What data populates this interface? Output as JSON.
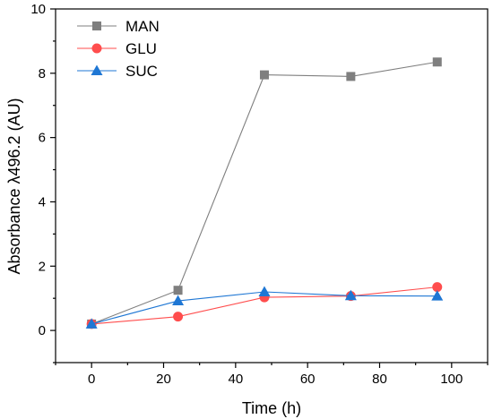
{
  "chart_data": {
    "type": "line",
    "xlabel": "Time (h)",
    "ylabel": "Absorbance λ496.2 (AU)",
    "xlim": [
      -10,
      110
    ],
    "ylim": [
      -1,
      10
    ],
    "xticks": [
      "0",
      "20",
      "40",
      "60",
      "80",
      "100"
    ],
    "yticks": [
      "0",
      "2",
      "4",
      "6",
      "8",
      "10"
    ],
    "grid": false,
    "legend_position": "top-left",
    "x": [
      0,
      24,
      48,
      72,
      96
    ],
    "series": [
      {
        "name": "MAN",
        "values": [
          0.2,
          1.25,
          7.95,
          7.9,
          8.35
        ],
        "color": "#7f7f7f",
        "marker": "square"
      },
      {
        "name": "GLU",
        "values": [
          0.2,
          0.43,
          1.03,
          1.07,
          1.35
        ],
        "color": "#ff4d4d",
        "marker": "circle"
      },
      {
        "name": "SUC",
        "values": [
          0.2,
          0.92,
          1.2,
          1.08,
          1.07
        ],
        "color": "#1f77d4",
        "marker": "triangle"
      }
    ]
  }
}
